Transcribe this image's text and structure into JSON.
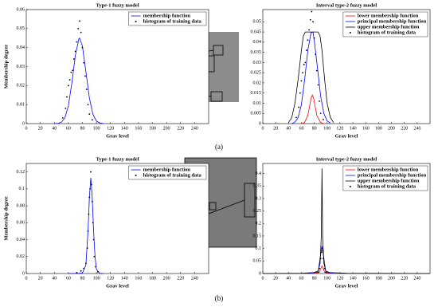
{
  "chart_data": [
    {
      "type": "line",
      "title": "Type-1 fuzzy model",
      "xlabel": "Grav level",
      "ylabel": "Membership degree",
      "xlim": [
        0,
        260
      ],
      "xticks": [
        0,
        20,
        40,
        60,
        80,
        100,
        120,
        140,
        160,
        180,
        200,
        220,
        240
      ],
      "ylim": [
        0,
        0.06
      ],
      "yticks": [
        0,
        0.01,
        0.02,
        0.03,
        0.04,
        0.05,
        0.06
      ],
      "legend": "upper right",
      "series": [
        {
          "name": "membership function",
          "color": "#0000ff",
          "mode": "line",
          "x": [
            40,
            45,
            50,
            55,
            60,
            65,
            70,
            75,
            76,
            80,
            85,
            90,
            95,
            100,
            105,
            110
          ],
          "values": [
            0,
            0.0001,
            0.0007,
            0.003,
            0.0093,
            0.0213,
            0.036,
            0.0447,
            0.045,
            0.0408,
            0.0273,
            0.0134,
            0.0049,
            0.0013,
            0.0003,
            0
          ]
        },
        {
          "name": "histogram of training data",
          "color": "#000000",
          "mode": "markers",
          "x": [
            52,
            56,
            58,
            60,
            62,
            64,
            66,
            68,
            70,
            72,
            74,
            76,
            78,
            80,
            82,
            84,
            86,
            88,
            90,
            94
          ],
          "values": [
            0.003,
            0.008,
            0.014,
            0.02,
            0.023,
            0.027,
            0.028,
            0.034,
            0.038,
            0.043,
            0.05,
            0.054,
            0.048,
            0.04,
            0.032,
            0.025,
            0.018,
            0.01,
            0.005,
            0.002
          ]
        }
      ]
    },
    {
      "type": "line",
      "title": "Interval type-2 fuzzy model",
      "xlabel": "Grav level",
      "xlim": [
        0,
        260
      ],
      "xticks": [
        0,
        20,
        40,
        60,
        80,
        100,
        120,
        140,
        160,
        180,
        200,
        220,
        240
      ],
      "ylim": [
        0,
        0.056
      ],
      "yticks": [
        0,
        0.005,
        0.01,
        0.015,
        0.02,
        0.025,
        0.03,
        0.035,
        0.04,
        0.045,
        0.05
      ],
      "legend": "upper right",
      "series": [
        {
          "name": "lower membership function",
          "color": "#ff0000",
          "mode": "line",
          "x": [
            60,
            65,
            70,
            73,
            75,
            77,
            79,
            81,
            84,
            90,
            95
          ],
          "values": [
            0,
            0.0005,
            0.004,
            0.009,
            0.0125,
            0.014,
            0.0125,
            0.009,
            0.004,
            0.0005,
            0
          ]
        },
        {
          "name": "principal membership function",
          "color": "#0000ff",
          "mode": "line",
          "x": [
            45,
            50,
            55,
            60,
            65,
            70,
            75,
            78,
            80,
            85,
            90,
            95,
            100,
            105
          ],
          "values": [
            0,
            0.0007,
            0.003,
            0.0093,
            0.0213,
            0.036,
            0.0447,
            0.045,
            0.0408,
            0.0273,
            0.0134,
            0.0049,
            0.0013,
            0.0003
          ]
        },
        {
          "name": "upper membership function",
          "color": "#000000",
          "mode": "line",
          "x": [
            40,
            45,
            50,
            55,
            60,
            63,
            66,
            70,
            80,
            86,
            89,
            92,
            96,
            100,
            105,
            110
          ],
          "values": [
            0.0005,
            0.003,
            0.01,
            0.022,
            0.036,
            0.043,
            0.045,
            0.045,
            0.045,
            0.045,
            0.043,
            0.036,
            0.022,
            0.01,
            0.003,
            0.0005
          ]
        },
        {
          "name": "histogram of training data",
          "color": "#000000",
          "mode": "markers",
          "x": [
            52,
            56,
            58,
            60,
            62,
            64,
            66,
            68,
            70,
            72,
            74,
            76,
            78,
            80,
            82,
            84,
            86,
            88,
            90,
            94
          ],
          "values": [
            0.003,
            0.008,
            0.015,
            0.021,
            0.025,
            0.029,
            0.03,
            0.036,
            0.041,
            0.046,
            0.051,
            0.055,
            0.05,
            0.042,
            0.034,
            0.026,
            0.019,
            0.011,
            0.005,
            0.002
          ]
        }
      ]
    },
    {
      "type": "line",
      "title": "Type-1 fuzzy model",
      "xlabel": "Grav level",
      "ylabel": "Membership degree",
      "xlim": [
        0,
        260
      ],
      "xticks": [
        0,
        20,
        40,
        60,
        80,
        100,
        120,
        140,
        160,
        180,
        200,
        220,
        240
      ],
      "ylim": [
        0,
        0.13
      ],
      "yticks": [
        0,
        0.02,
        0.04,
        0.06,
        0.08,
        0.1,
        0.12
      ],
      "legend": "upper right",
      "series": [
        {
          "name": "membership function",
          "color": "#0000ff",
          "mode": "line",
          "x": [
            60,
            70,
            80,
            85,
            88,
            90,
            92,
            94,
            96,
            98,
            100,
            105,
            110
          ],
          "values": [
            0,
            0,
            0.0005,
            0.01,
            0.05,
            0.09,
            0.113,
            0.09,
            0.05,
            0.02,
            0.005,
            0,
            0
          ]
        },
        {
          "name": "histogram of training data",
          "color": "#000000",
          "mode": "markers",
          "x": [
            72,
            78,
            82,
            85,
            87,
            88,
            89,
            90,
            91,
            92,
            93,
            94,
            95,
            96,
            97,
            99,
            102
          ],
          "values": [
            0.001,
            0.003,
            0.006,
            0.012,
            0.03,
            0.05,
            0.07,
            0.09,
            0.1,
            0.12,
            0.105,
            0.085,
            0.06,
            0.04,
            0.02,
            0.008,
            0.002
          ]
        }
      ]
    },
    {
      "type": "line",
      "title": "Interval type-2 fuzzy model",
      "xlabel": "Grav level",
      "xlim": [
        0,
        260
      ],
      "xticks": [
        0,
        20,
        40,
        60,
        80,
        100,
        120,
        140,
        160,
        180,
        200,
        220,
        240
      ],
      "ylim": [
        0,
        0.44
      ],
      "yticks": [
        0,
        0.05,
        0.1,
        0.15,
        0.2,
        0.25,
        0.3,
        0.35,
        0.4
      ],
      "legend": "upper right",
      "series": [
        {
          "name": "lower membership function",
          "color": "#ff0000",
          "mode": "line",
          "x": [
            80,
            88,
            90,
            92,
            94,
            96,
            104
          ],
          "values": [
            0,
            0.005,
            0.02,
            0.03,
            0.02,
            0.005,
            0
          ]
        },
        {
          "name": "principal membership function",
          "color": "#0000ff",
          "mode": "line",
          "x": [
            70,
            86,
            89,
            92,
            95,
            98,
            110
          ],
          "values": [
            0,
            0.005,
            0.06,
            0.11,
            0.06,
            0.005,
            0
          ]
        },
        {
          "name": "upper membership function",
          "color": "#000000",
          "mode": "line",
          "x": [
            0,
            60,
            80,
            86,
            89,
            91,
            92,
            93,
            95,
            98,
            104,
            130,
            260
          ],
          "values": [
            0,
            0.001,
            0.004,
            0.01,
            0.04,
            0.15,
            0.42,
            0.15,
            0.04,
            0.01,
            0.004,
            0.001,
            0
          ]
        },
        {
          "name": "histogram of training data",
          "color": "#000000",
          "mode": "markers",
          "x": [
            86,
            88,
            90,
            91,
            92,
            93,
            94,
            96,
            98
          ],
          "values": [
            0.005,
            0.02,
            0.06,
            0.085,
            0.1,
            0.09,
            0.06,
            0.02,
            0.005
          ]
        }
      ]
    }
  ],
  "captions": [
    "(a)",
    "(b)"
  ]
}
